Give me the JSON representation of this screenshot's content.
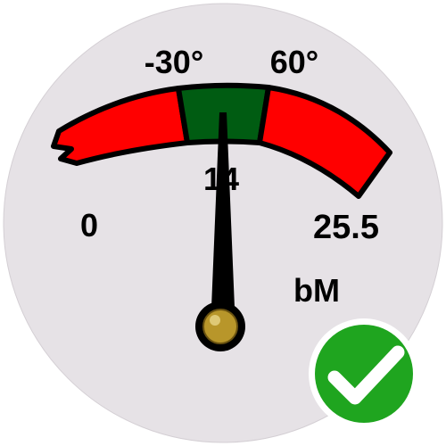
{
  "gauge": {
    "reading": 14,
    "unit": "bM",
    "range": {
      "min": 0,
      "max": 25.5
    },
    "labels": {
      "min": "0",
      "max": "25.5",
      "zone_start": "-30°",
      "zone_end": "60°",
      "value": "14"
    },
    "colors": {
      "face": "#e6e2e6",
      "out_of_range": "#ff0000",
      "in_range": "#005c12",
      "needle": "#000000",
      "pivot": "#b8962a"
    }
  },
  "status": {
    "icon": "check-mark-icon",
    "state": "ok",
    "color": "#1fa51f"
  }
}
